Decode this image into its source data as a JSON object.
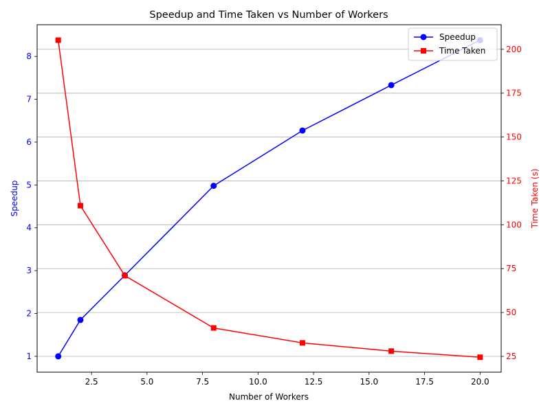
{
  "chart_data": {
    "type": "line",
    "title": "Speedup and Time Taken vs Number of Workers",
    "xlabel": "Number of Workers",
    "ylabel_left": "Speedup",
    "ylabel_right": "Time Taken (s)",
    "xlim": [
      0.05,
      20.95
    ],
    "ylim_left": [
      0.63,
      8.74
    ],
    "ylim_right": [
      16.0,
      214.0
    ],
    "x_ticks": [
      2.5,
      5.0,
      7.5,
      10.0,
      12.5,
      15.0,
      17.5,
      20.0
    ],
    "x_tick_labels": [
      "2.5",
      "5.0",
      "7.5",
      "10.0",
      "12.5",
      "15.0",
      "17.5",
      "20.0"
    ],
    "y_left_ticks": [
      1,
      2,
      3,
      4,
      5,
      6,
      7,
      8
    ],
    "y_left_tick_labels": [
      "1",
      "2",
      "3",
      "4",
      "5",
      "6",
      "7",
      "8"
    ],
    "y_right_ticks": [
      25,
      50,
      75,
      100,
      125,
      150,
      175,
      200
    ],
    "y_right_tick_labels": [
      "25",
      "50",
      "75",
      "100",
      "125",
      "150",
      "175",
      "200"
    ],
    "grid": "horizontal lines at right-axis ticks",
    "legend_position": "top-right",
    "x": [
      1,
      2,
      4,
      8,
      12,
      16,
      20
    ],
    "series": [
      {
        "name": "Speedup",
        "axis": "left",
        "color": "#0000ff",
        "marker": "circle",
        "values": [
          1.0,
          1.85,
          2.89,
          4.98,
          6.27,
          7.33,
          8.38
        ]
      },
      {
        "name": "Time Taken",
        "axis": "right",
        "color": "#ff0000",
        "marker": "square",
        "values": [
          205.2,
          110.9,
          71.0,
          41.2,
          32.7,
          28.0,
          24.5
        ]
      }
    ],
    "colors": {
      "left_axis": "#0000ff",
      "right_axis": "#ff0000",
      "grid": "#b0b0b0"
    }
  }
}
